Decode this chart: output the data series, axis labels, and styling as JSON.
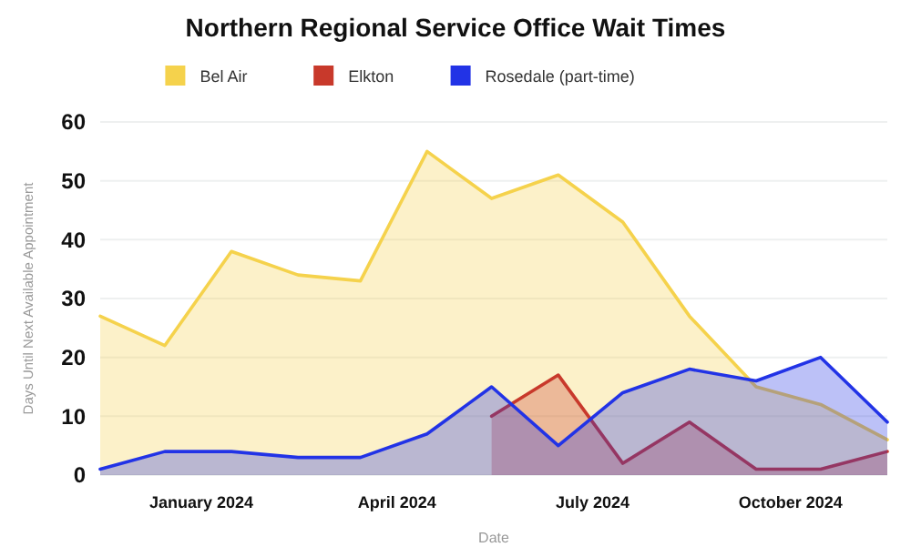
{
  "chart_data": {
    "type": "area",
    "title": "Northern Regional Service Office Wait Times",
    "xlabel": "Date",
    "ylabel": "Days Until Next Available Appointment",
    "x": [
      "2023-11-15",
      "2023-12-15",
      "2024-01-15",
      "2024-02-15",
      "2024-03-15",
      "2024-04-15",
      "2024-05-15",
      "2024-06-15",
      "2024-07-15",
      "2024-08-15",
      "2024-09-15",
      "2024-10-15",
      "2024-11-15"
    ],
    "series": [
      {
        "name": "Bel Air",
        "color": "#f5d24c",
        "values": [
          27,
          22,
          38,
          34,
          33,
          55,
          47,
          51,
          43,
          27,
          15,
          12,
          6
        ]
      },
      {
        "name": "Elkton",
        "color": "#c8392b",
        "values": [
          null,
          null,
          null,
          null,
          null,
          null,
          10,
          17,
          2,
          9,
          1,
          1,
          4
        ]
      },
      {
        "name": "Rosedale (part-time)",
        "color": "#2233e6",
        "values": [
          1,
          4,
          4,
          3,
          3,
          7,
          15,
          5,
          14,
          18,
          16,
          20,
          9
        ]
      }
    ],
    "xlim": [
      "2023-11-15",
      "2024-11-15"
    ],
    "xticks": [
      {
        "value": "2024-01-01",
        "label": "January 2024"
      },
      {
        "value": "2024-04-01",
        "label": "April 2024"
      },
      {
        "value": "2024-07-01",
        "label": "July 2024"
      },
      {
        "value": "2024-10-01",
        "label": "October 2024"
      }
    ],
    "ylim": [
      0,
      60
    ],
    "yticks": [
      0,
      10,
      20,
      30,
      40,
      50,
      60
    ],
    "grid": "y",
    "legend": "top"
  }
}
